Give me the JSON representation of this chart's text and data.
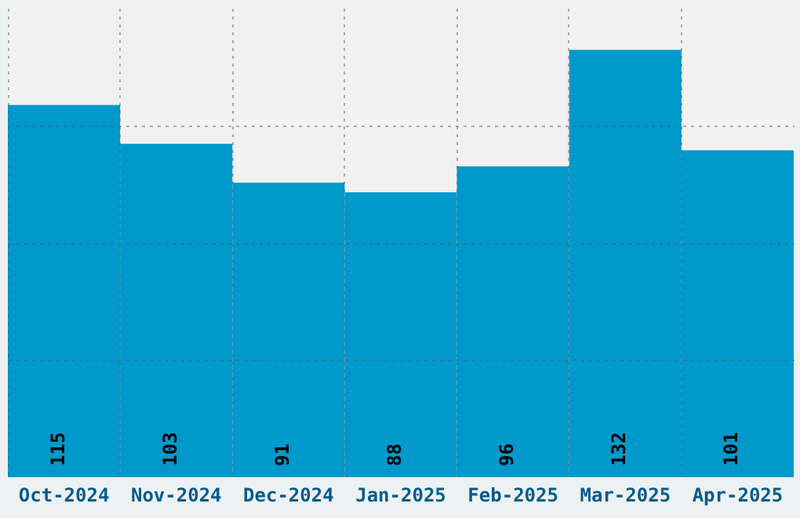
{
  "chart_data": {
    "type": "bar",
    "categories": [
      "Oct-2024",
      "Nov-2024",
      "Dec-2024",
      "Jan-2025",
      "Feb-2025",
      "Mar-2025",
      "Apr-2025"
    ],
    "values": [
      115,
      103,
      91,
      88,
      96,
      132,
      101
    ],
    "color": "#0099cc",
    "ylim": [
      0,
      145
    ],
    "yticks": [
      {
        "value": 36.25,
        "label": null
      },
      {
        "value": 72.5,
        "label": null
      },
      {
        "value": 108.75,
        "label": null
      }
    ],
    "tick_labels": "x",
    "grid": true,
    "data_labels": true
  }
}
